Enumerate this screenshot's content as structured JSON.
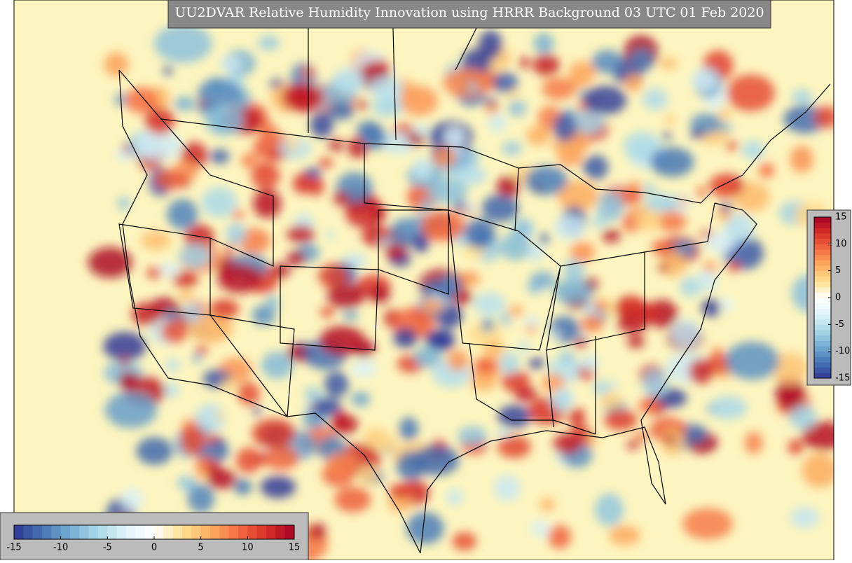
{
  "title": "UU2DVAR Relative Humidity Innovation using HRRR Background 03 UTC 01 Feb 2020",
  "colormap": [
    "#313695",
    "#4575b4",
    "#74add1",
    "#abd9e9",
    "#e0f3f8",
    "#ffffff",
    "#fee090",
    "#fdae61",
    "#f46d43",
    "#d73027",
    "#a50026"
  ],
  "colorbars": [
    {
      "orientation": "vertical",
      "lim": [
        -15,
        15
      ],
      "ticks": [
        -15,
        -10,
        -5,
        0,
        5,
        10,
        15
      ]
    },
    {
      "orientation": "horizontal",
      "lim": [
        -15,
        15
      ],
      "ticks": [
        -15,
        -10,
        -5,
        0,
        5,
        10,
        15
      ]
    }
  ]
}
